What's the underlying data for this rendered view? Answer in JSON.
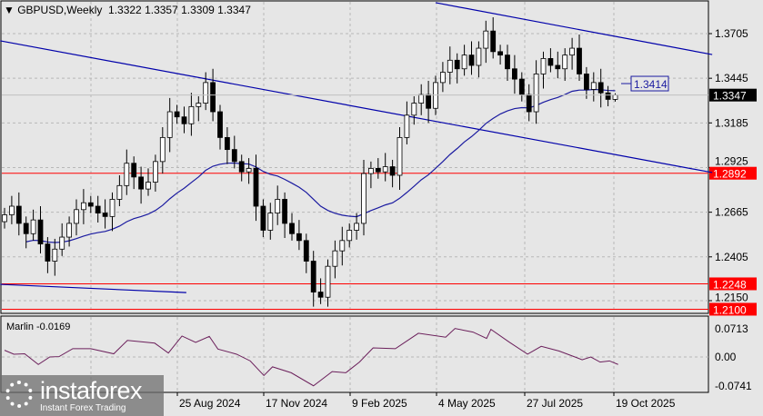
{
  "header": {
    "symbol": "GBPUSD,Weekly",
    "open": "1.3322",
    "high": "1.3357",
    "low": "1.3309",
    "close": "1.3347"
  },
  "price_axis": {
    "ticks": [
      "1.3705",
      "1.3445",
      "1.3185",
      "1.2925",
      "1.2665",
      "1.2405",
      "1.2150"
    ],
    "current": "1.3347",
    "ma_label": "1.3414"
  },
  "levels": [
    {
      "value": "1.2892",
      "color": "#ff0000"
    },
    {
      "value": "1.2248",
      "color": "#ff0000"
    },
    {
      "value": "1.2100",
      "color": "#ff0000"
    }
  ],
  "date_axis": [
    "25 Aug 2024",
    "17 Nov 2024",
    "9 Feb 2025",
    "4 May 2025",
    "27 Jul 2025",
    "19 Oct 2025"
  ],
  "oscillator": {
    "label": "Marlin -0.0169",
    "ticks": [
      "0.0713",
      "0.00",
      "-0.0741"
    ],
    "color": "#6b1f5b",
    "points": [
      [
        0,
        0.017
      ],
      [
        1.3,
        0.007
      ],
      [
        2.8,
        0.008
      ],
      [
        4.7,
        -0.019
      ],
      [
        6.3,
        0
      ],
      [
        7.6,
        0.001
      ],
      [
        9.5,
        0.021
      ],
      [
        12,
        0.021
      ],
      [
        15.2,
        0.008
      ],
      [
        17.1,
        0.042
      ],
      [
        20.9,
        0.035
      ],
      [
        22.8,
        0.01
      ],
      [
        24.7,
        0.053
      ],
      [
        26.6,
        0.037
      ],
      [
        28.5,
        0.052
      ],
      [
        29.7,
        0.02
      ],
      [
        32.3,
        0.007
      ],
      [
        34.2,
        -0.01
      ],
      [
        36.1,
        -0.047
      ],
      [
        37.3,
        -0.025
      ],
      [
        39.9,
        -0.04
      ],
      [
        43,
        -0.073
      ],
      [
        45.6,
        -0.037
      ],
      [
        47.5,
        -0.04
      ],
      [
        49.4,
        -0.013
      ],
      [
        51.3,
        0.023
      ],
      [
        54.4,
        0.021
      ],
      [
        57.6,
        0.06
      ],
      [
        61.4,
        0.05
      ],
      [
        62.7,
        0.072
      ],
      [
        65.2,
        0.063
      ],
      [
        67.1,
        0.047
      ],
      [
        67.7,
        0.07
      ],
      [
        70.3,
        0.037
      ],
      [
        72.8,
        0.007
      ],
      [
        74.7,
        0.027
      ],
      [
        77.2,
        0.015
      ],
      [
        80.4,
        -0.007
      ],
      [
        81.6,
        0
      ],
      [
        82.9,
        -0.013
      ],
      [
        84.2,
        -0.01
      ],
      [
        85.4,
        -0.019
      ]
    ]
  },
  "colors": {
    "bull": "#ffffff",
    "bear": "#000000",
    "trend": "#0000aa",
    "ma": "#1a1aa0"
  },
  "chart_data": {
    "type": "candlestick",
    "timeframe": "Weekly",
    "close": [
      1.265,
      1.27,
      1.26,
      1.254,
      1.262,
      1.248,
      1.238,
      1.245,
      1.252,
      1.26,
      1.268,
      1.272,
      1.27,
      1.266,
      1.264,
      1.274,
      1.282,
      1.295,
      1.287,
      1.28,
      1.284,
      1.296,
      1.31,
      1.325,
      1.322,
      1.318,
      1.328,
      1.33,
      1.342,
      1.325,
      1.31,
      1.303,
      1.296,
      1.29,
      1.292,
      1.27,
      1.256,
      1.266,
      1.274,
      1.26,
      1.254,
      1.25,
      1.238,
      1.22,
      1.217,
      1.235,
      1.244,
      1.25,
      1.256,
      1.26,
      1.289,
      1.292,
      1.29,
      1.293,
      1.288,
      1.31,
      1.323,
      1.33,
      1.335,
      1.327,
      1.342,
      1.348,
      1.355,
      1.35,
      1.358,
      1.352,
      1.362,
      1.372,
      1.36,
      1.358,
      1.35,
      1.344,
      1.335,
      1.325,
      1.347,
      1.356,
      1.352,
      1.35,
      1.358,
      1.362,
      1.347,
      1.338,
      1.342,
      1.336,
      1.3322,
      1.3347
    ],
    "last_candle": {
      "open": 1.3322,
      "high": 1.3357,
      "low": 1.3309,
      "close": 1.3347
    },
    "trendlines": [
      {
        "from": [
          60,
          1.3885
        ],
        "to": [
          98.5,
          1.3583
        ]
      },
      {
        "from": [
          -0.6,
          1.3663
        ],
        "to": [
          98.5,
          1.2896
        ]
      },
      {
        "from": [
          -0.6,
          1.2245
        ],
        "to": [
          25.3,
          1.2197
        ]
      }
    ],
    "ylim": [
      1.2085,
      1.3885
    ]
  }
}
